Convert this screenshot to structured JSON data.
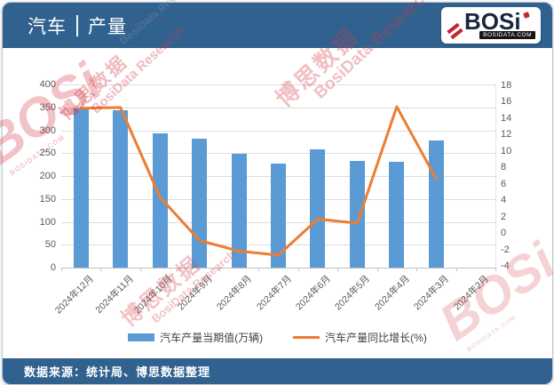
{
  "header": {
    "title_left": "汽车",
    "title_right": "产量",
    "logo": {
      "brand": "BOSi",
      "url": "BOSIDATA.COM"
    }
  },
  "chart_data": {
    "type": "bar+line",
    "title": "汽车 | 产量",
    "categories": [
      "2024年12月",
      "2024年11月",
      "2024年10月",
      "2024年9月",
      "2024年8月",
      "2024年7月",
      "2024年6月",
      "2024年5月",
      "2024年4月",
      "2024年3月",
      "2024年2月"
    ],
    "series": [
      {
        "name": "汽车产量当期值(万辆)",
        "type": "bar",
        "axis": "left",
        "color": "#5B9BD5",
        "values": [
          348,
          344,
          294,
          282,
          249,
          228,
          259,
          233,
          231,
          278,
          null
        ]
      },
      {
        "name": "汽车产量同比增长(%)",
        "type": "line",
        "axis": "right",
        "color": "#ED7D31",
        "values": [
          15.2,
          15.3,
          4.4,
          -0.9,
          -2.2,
          -2.7,
          1.7,
          1.2,
          15.4,
          6.6,
          null
        ]
      }
    ],
    "left_axis": {
      "min": 0,
      "max": 400,
      "step": 50,
      "ticks": [
        400,
        350,
        300,
        250,
        200,
        150,
        100,
        50,
        0
      ]
    },
    "right_axis": {
      "min": -4,
      "max": 18,
      "step": 2,
      "ticks": [
        18,
        16,
        14,
        12,
        10,
        8,
        6,
        4,
        2,
        0,
        -2,
        -4
      ]
    },
    "grid": true,
    "legend_position": "bottom"
  },
  "legend": {
    "items": [
      {
        "label": "汽车产量当期值(万辆)",
        "color": "#5B9BD5",
        "type": "bar"
      },
      {
        "label": "汽车产量同比增长(%)",
        "color": "#ED7D31",
        "type": "line"
      }
    ]
  },
  "footer": {
    "source": "数据来源：统计局、博思数据整理"
  },
  "watermark": {
    "brand": "BOSi",
    "cn": "博思数据",
    "en": "BosiData Research",
    "url": "BOSIDATA.COM"
  },
  "colors": {
    "brand_blue": "#31618F",
    "bar_blue": "#5B9BD5",
    "line_orange": "#ED7D31",
    "grid_gray": "#D9D9D9",
    "axis_text": "#595959",
    "watermark_red": "#D33A45"
  }
}
